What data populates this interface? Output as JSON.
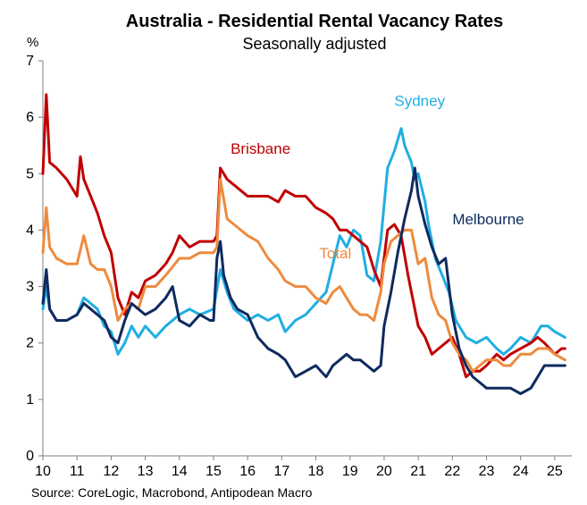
{
  "chart_data": {
    "type": "line",
    "title": "Australia - Residential Rental Vacancy Rates",
    "subtitle": "Seasonally adjusted",
    "ylabel": "%",
    "source": "Source: CoreLogic, Macrobond, Antipodean Macro",
    "xlim": [
      10,
      25.5
    ],
    "ylim": [
      0,
      7
    ],
    "x_ticks": [
      10,
      11,
      12,
      13,
      14,
      15,
      16,
      17,
      18,
      19,
      20,
      21,
      22,
      23,
      24,
      25
    ],
    "x_tick_labels": [
      "10",
      "11",
      "12",
      "13",
      "14",
      "15",
      "16",
      "17",
      "18",
      "19",
      "20",
      "21",
      "22",
      "23",
      "24",
      "25"
    ],
    "y_ticks": [
      0,
      1,
      2,
      3,
      4,
      5,
      6,
      7
    ],
    "y_tick_labels": [
      "0",
      "1",
      "2",
      "3",
      "4",
      "5",
      "6",
      "7"
    ],
    "grid": false,
    "series": [
      {
        "name": "Sydney",
        "color": "#1FAEE3",
        "x": [
          10.0,
          10.1,
          10.2,
          10.4,
          10.7,
          11.0,
          11.2,
          11.4,
          11.6,
          11.8,
          12.0,
          12.2,
          12.4,
          12.6,
          12.8,
          13.0,
          13.3,
          13.6,
          14.0,
          14.3,
          14.6,
          15.0,
          15.2,
          15.4,
          15.6,
          15.8,
          16.0,
          16.3,
          16.6,
          16.9,
          17.1,
          17.4,
          17.7,
          18.0,
          18.3,
          18.5,
          18.7,
          18.9,
          19.1,
          19.3,
          19.5,
          19.7,
          19.9,
          20.1,
          20.3,
          20.5,
          20.6,
          20.8,
          20.9,
          21.0,
          21.2,
          21.3,
          21.5,
          21.7,
          21.9,
          22.1,
          22.4,
          22.7,
          23.0,
          23.3,
          23.5,
          23.7,
          24.0,
          24.3,
          24.6,
          24.8,
          25.0,
          25.3
        ],
        "values": [
          2.6,
          3.0,
          2.6,
          2.4,
          2.4,
          2.5,
          2.8,
          2.7,
          2.6,
          2.3,
          2.2,
          1.8,
          2.0,
          2.3,
          2.1,
          2.3,
          2.1,
          2.3,
          2.5,
          2.6,
          2.5,
          2.6,
          3.3,
          2.9,
          2.6,
          2.5,
          2.4,
          2.5,
          2.4,
          2.5,
          2.2,
          2.4,
          2.5,
          2.7,
          2.9,
          3.4,
          3.9,
          3.7,
          4.0,
          3.9,
          3.2,
          3.1,
          3.8,
          5.1,
          5.4,
          5.8,
          5.5,
          5.2,
          4.9,
          5.0,
          4.5,
          4.1,
          3.5,
          3.2,
          2.9,
          2.4,
          2.1,
          2.0,
          2.1,
          1.9,
          1.8,
          1.9,
          2.1,
          2.0,
          2.3,
          2.3,
          2.2,
          2.1
        ]
      },
      {
        "name": "Brisbane",
        "color": "#C00000",
        "x": [
          10.0,
          10.1,
          10.2,
          10.4,
          10.7,
          11.0,
          11.1,
          11.2,
          11.4,
          11.6,
          11.8,
          12.0,
          12.2,
          12.4,
          12.6,
          12.8,
          13.0,
          13.3,
          13.6,
          13.8,
          14.0,
          14.3,
          14.6,
          15.0,
          15.1,
          15.2,
          15.4,
          15.6,
          15.8,
          16.0,
          16.3,
          16.6,
          16.9,
          17.1,
          17.4,
          17.7,
          18.0,
          18.3,
          18.5,
          18.7,
          18.9,
          19.1,
          19.3,
          19.5,
          19.7,
          19.9,
          20.0,
          20.1,
          20.3,
          20.5,
          20.7,
          20.9,
          21.0,
          21.2,
          21.4,
          21.6,
          21.8,
          22.0,
          22.2,
          22.4,
          22.6,
          22.8,
          23.0,
          23.3,
          23.5,
          23.7,
          24.0,
          24.3,
          24.5,
          24.7,
          25.0,
          25.2,
          25.3
        ],
        "values": [
          5.0,
          6.4,
          5.2,
          5.1,
          4.9,
          4.6,
          5.3,
          4.9,
          4.6,
          4.3,
          3.9,
          3.6,
          2.8,
          2.5,
          2.9,
          2.8,
          3.1,
          3.2,
          3.4,
          3.6,
          3.9,
          3.7,
          3.8,
          3.8,
          3.9,
          5.1,
          4.9,
          4.8,
          4.7,
          4.6,
          4.6,
          4.6,
          4.5,
          4.7,
          4.6,
          4.6,
          4.4,
          4.3,
          4.2,
          4.0,
          4.0,
          3.9,
          3.8,
          3.7,
          3.3,
          3.0,
          3.5,
          4.0,
          4.1,
          3.9,
          3.2,
          2.6,
          2.3,
          2.1,
          1.8,
          1.9,
          2.0,
          2.1,
          1.8,
          1.4,
          1.5,
          1.5,
          1.6,
          1.8,
          1.7,
          1.8,
          1.9,
          2.0,
          2.1,
          2.0,
          1.8,
          1.9,
          1.9
        ]
      },
      {
        "name": "Total",
        "color": "#ED8B3F",
        "x": [
          10.0,
          10.1,
          10.2,
          10.4,
          10.7,
          11.0,
          11.2,
          11.4,
          11.6,
          11.8,
          12.0,
          12.2,
          12.4,
          12.6,
          12.8,
          13.0,
          13.3,
          13.6,
          14.0,
          14.3,
          14.6,
          15.0,
          15.1,
          15.2,
          15.4,
          15.6,
          15.8,
          16.0,
          16.3,
          16.6,
          16.9,
          17.1,
          17.4,
          17.7,
          18.0,
          18.3,
          18.5,
          18.7,
          18.9,
          19.1,
          19.3,
          19.5,
          19.7,
          19.9,
          20.0,
          20.2,
          20.4,
          20.6,
          20.8,
          21.0,
          21.2,
          21.4,
          21.6,
          21.8,
          22.0,
          22.2,
          22.4,
          22.6,
          22.8,
          23.0,
          23.3,
          23.5,
          23.7,
          24.0,
          24.3,
          24.5,
          24.8,
          25.0,
          25.3
        ],
        "values": [
          3.6,
          4.4,
          3.7,
          3.5,
          3.4,
          3.4,
          3.9,
          3.4,
          3.3,
          3.3,
          3.0,
          2.4,
          2.6,
          2.7,
          2.6,
          3.0,
          3.0,
          3.2,
          3.5,
          3.5,
          3.6,
          3.6,
          3.7,
          4.9,
          4.2,
          4.1,
          4.0,
          3.9,
          3.8,
          3.5,
          3.3,
          3.1,
          3.0,
          3.0,
          2.8,
          2.7,
          2.9,
          3.0,
          2.8,
          2.6,
          2.5,
          2.5,
          2.4,
          2.9,
          3.4,
          3.8,
          3.9,
          4.0,
          4.0,
          3.4,
          3.5,
          2.8,
          2.5,
          2.4,
          2.0,
          1.8,
          1.7,
          1.5,
          1.6,
          1.7,
          1.7,
          1.6,
          1.6,
          1.8,
          1.8,
          1.9,
          1.9,
          1.8,
          1.7
        ]
      },
      {
        "name": "Melbourne",
        "color": "#0E2A5E",
        "x": [
          10.0,
          10.1,
          10.2,
          10.4,
          10.7,
          11.0,
          11.2,
          11.4,
          11.6,
          11.8,
          12.0,
          12.2,
          12.4,
          12.6,
          12.8,
          13.0,
          13.3,
          13.6,
          13.8,
          14.0,
          14.3,
          14.6,
          14.9,
          15.0,
          15.1,
          15.2,
          15.3,
          15.5,
          15.7,
          16.0,
          16.3,
          16.6,
          16.9,
          17.1,
          17.4,
          17.7,
          18.0,
          18.3,
          18.5,
          18.7,
          18.9,
          19.1,
          19.3,
          19.5,
          19.7,
          19.9,
          20.0,
          20.2,
          20.4,
          20.6,
          20.8,
          20.9,
          21.0,
          21.2,
          21.4,
          21.6,
          21.8,
          22.0,
          22.2,
          22.4,
          22.6,
          22.8,
          23.0,
          23.3,
          23.5,
          23.7,
          24.0,
          24.3,
          24.5,
          24.7,
          25.0,
          25.3
        ],
        "values": [
          2.7,
          3.3,
          2.6,
          2.4,
          2.4,
          2.5,
          2.7,
          2.6,
          2.5,
          2.4,
          2.1,
          2.0,
          2.4,
          2.7,
          2.6,
          2.5,
          2.6,
          2.8,
          3.0,
          2.4,
          2.3,
          2.5,
          2.4,
          2.4,
          3.5,
          3.8,
          3.2,
          2.8,
          2.6,
          2.5,
          2.1,
          1.9,
          1.8,
          1.7,
          1.4,
          1.5,
          1.6,
          1.4,
          1.6,
          1.7,
          1.8,
          1.7,
          1.7,
          1.6,
          1.5,
          1.6,
          2.3,
          2.9,
          3.6,
          4.2,
          4.7,
          5.1,
          4.6,
          4.1,
          3.7,
          3.4,
          3.5,
          2.5,
          1.9,
          1.6,
          1.4,
          1.3,
          1.2,
          1.2,
          1.2,
          1.2,
          1.1,
          1.2,
          1.4,
          1.6,
          1.6,
          1.6
        ]
      }
    ],
    "annotations": [
      {
        "text": "Sydney",
        "series": "Sydney",
        "x": 20.3,
        "y": 6.2
      },
      {
        "text": "Brisbane",
        "series": "Brisbane",
        "x": 15.5,
        "y": 5.35
      },
      {
        "text": "Total",
        "series": "Total",
        "x": 18.1,
        "y": 3.5
      },
      {
        "text": "Melbourne",
        "series": "Melbourne",
        "x": 22.0,
        "y": 4.1
      }
    ]
  }
}
